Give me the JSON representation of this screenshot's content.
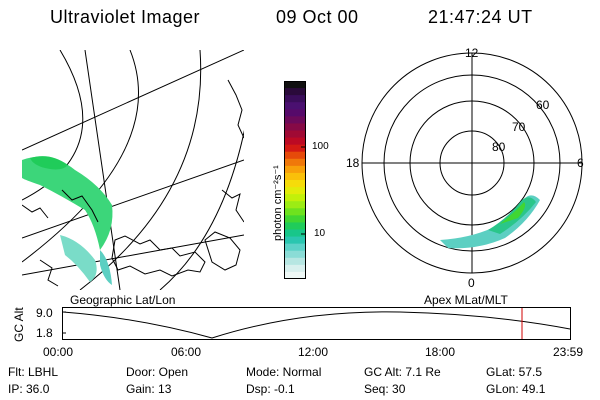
{
  "header": {
    "instrument": "Ultraviolet Imager",
    "date": "09 Oct 00",
    "time": "21:47:24 UT"
  },
  "geo_map": {
    "label": "Geographic Lat/Lon"
  },
  "colorbar": {
    "unit_label": "photon cm⁻²s⁻¹",
    "ticks": [
      "100",
      "10"
    ],
    "colors": [
      "#101010",
      "#2a0a3a",
      "#3a0d5a",
      "#4a1070",
      "#560a6a",
      "#6c0a5a",
      "#860a46",
      "#a00a34",
      "#bc0a24",
      "#d41a14",
      "#e64a0a",
      "#f0780a",
      "#f8a00a",
      "#fac00a",
      "#f6dc0a",
      "#e2ec0a",
      "#c2f00a",
      "#9cec14",
      "#6ee21e",
      "#40d632",
      "#20cc5a",
      "#18c68a",
      "#2ac6b0",
      "#5cd2c8",
      "#8adcd6",
      "#b6e6e2",
      "#d8f0ee",
      "#eef8f6"
    ]
  },
  "polar": {
    "label": "Apex MLat/MLT",
    "mlt_labels": {
      "top": "12",
      "left": "18",
      "right": "6",
      "bottom": "0"
    },
    "lat_labels": [
      "60",
      "70",
      "80"
    ]
  },
  "timeline": {
    "y_axis_label": "GC Alt",
    "y_ticks": [
      "9.0",
      "1.8"
    ],
    "x_ticks": [
      "00:00",
      "06:00",
      "12:00",
      "18:00",
      "23:59"
    ],
    "marker_color": "#d00000"
  },
  "info": {
    "flt": "Flt: LBHL",
    "ip": "IP: 36.0",
    "door": "Door: Open",
    "gain": "Gain: 13",
    "mode": "Mode: Normal",
    "dsp": "Dsp:  -0.1",
    "gc_alt": "GC Alt: 7.1 Re",
    "seq": "Seq: 30",
    "glat": "GLat:  57.5",
    "glon": "GLon:  49.1"
  }
}
